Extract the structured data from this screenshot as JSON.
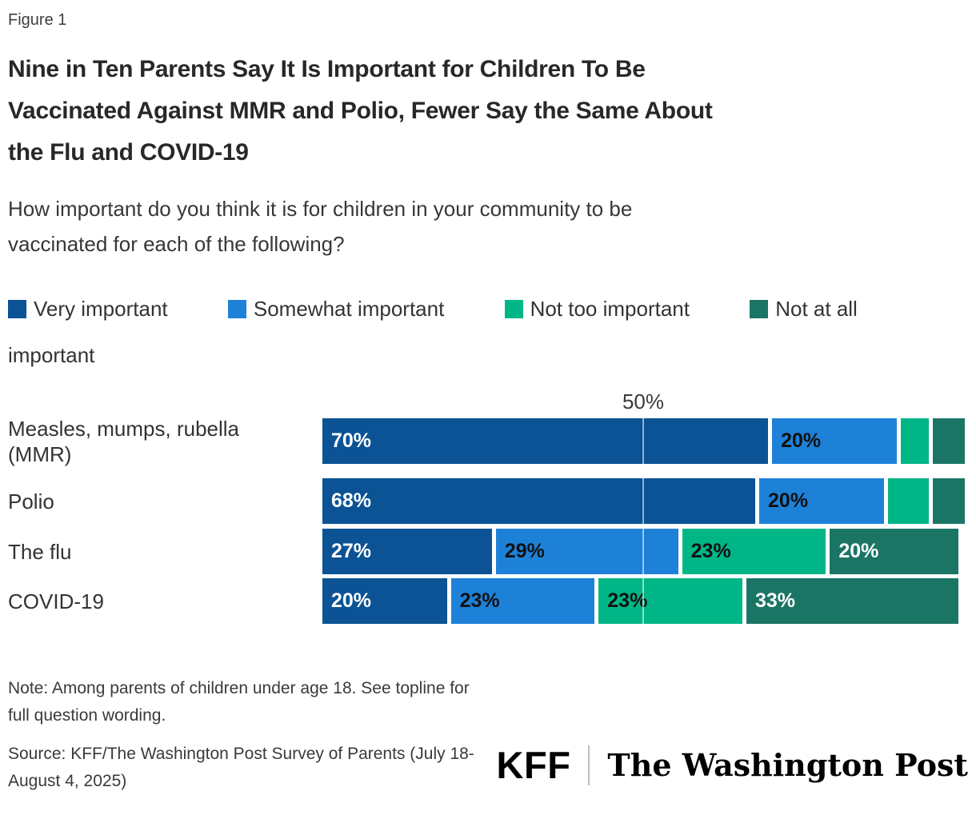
{
  "figure_label": "Figure 1",
  "title_lines": [
    "Nine in Ten Parents Say It Is Important for Children To Be",
    "Vaccinated Against MMR and Polio, Fewer Say the Same About",
    "the Flu and COVID-19"
  ],
  "subtitle_lines": [
    "How important do you think it is for children in your community to be",
    "vaccinated for each of the following?"
  ],
  "legend": [
    {
      "label": "Very important",
      "color": "#0B5394"
    },
    {
      "label": "Somewhat important",
      "color": "#1E81D8"
    },
    {
      "label": "Not too important",
      "color": "#00B687"
    },
    {
      "label": "Not at all important",
      "color": "#1B7565"
    }
  ],
  "chart_data": {
    "type": "bar",
    "orientation": "horizontal",
    "stacked": true,
    "title": "Nine in Ten Parents Say It Is Important for Children To Be Vaccinated Against MMR and Polio, Fewer Say the Same About the Flu and COVID-19",
    "question": "How important do you think it is for children in your community to be vaccinated for each of the following?",
    "categories": [
      "Measles, mumps, rubella (MMR)",
      "Polio",
      "The flu",
      "COVID-19"
    ],
    "series": [
      {
        "name": "Very important",
        "color": "#0B5394",
        "label_color": "#FFFFFF",
        "values": [
          70,
          68,
          27,
          20
        ]
      },
      {
        "name": "Somewhat important",
        "color": "#1E81D8",
        "label_color": "#111111",
        "values": [
          20,
          20,
          29,
          23
        ]
      },
      {
        "name": "Not too important",
        "color": "#00B687",
        "label_color": "#111111",
        "values": [
          5,
          7,
          23,
          23
        ]
      },
      {
        "name": "Not at all important",
        "color": "#1B7565",
        "label_color": "#FFFFFF",
        "values": [
          5,
          5,
          20,
          33
        ]
      }
    ],
    "axis": {
      "xmax": 100,
      "ticks": [
        {
          "value": 50,
          "label": "50%"
        }
      ],
      "gridline": true
    },
    "value_suffix": "%",
    "label_min_value": 10,
    "legend_position": "top"
  },
  "note_lines": [
    "Note: Among parents of children under age 18. See topline for",
    "full question wording."
  ],
  "source_lines": [
    "Source: KFF/The Washington Post Survey of Parents (July 18-",
    "August 4, 2025)"
  ],
  "footer_logos": {
    "kff_text": "KFF",
    "wapo_text": "The Washington Post"
  }
}
